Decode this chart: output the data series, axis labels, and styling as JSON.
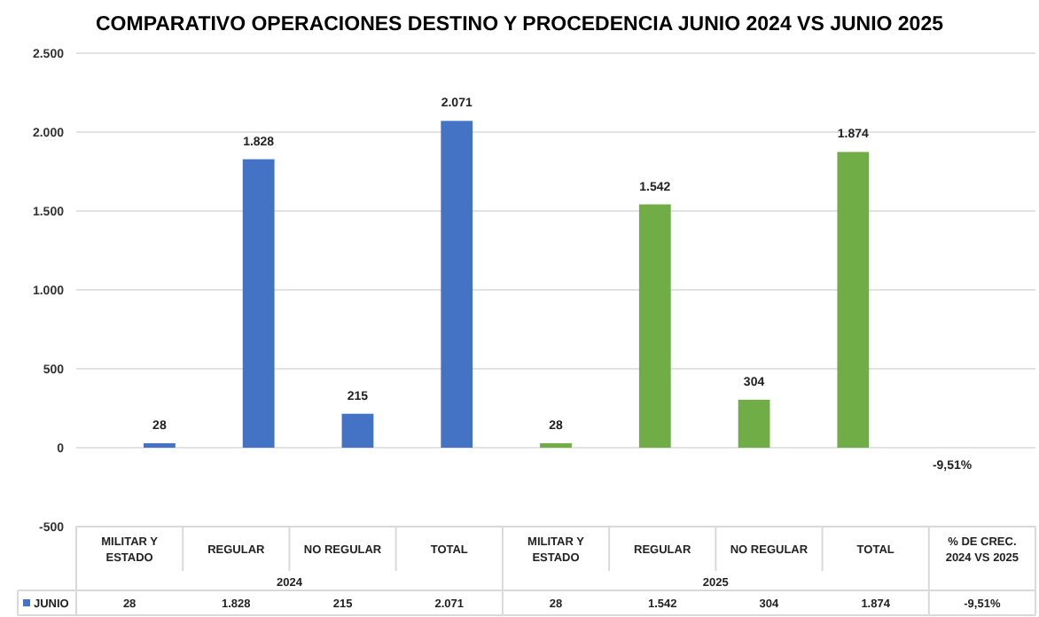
{
  "chart_data": {
    "type": "bar",
    "title": "COMPARATIVO OPERACIONES DESTINO Y PROCEDENCIA JUNIO 2024 VS JUNIO 2025",
    "categories": [
      "MILITAR Y ESTADO",
      "REGULAR",
      "NO REGULAR",
      "TOTAL",
      "MILITAR Y ESTADO",
      "REGULAR",
      "NO REGULAR",
      "TOTAL",
      "% DE CREC. 2024 VS 2025"
    ],
    "series": [
      {
        "name": "JUNIO",
        "color": "#4472c4",
        "colors": [
          "#4472c4",
          "#4472c4",
          "#4472c4",
          "#4472c4",
          "#70ad47",
          "#70ad47",
          "#70ad47",
          "#70ad47",
          "#70ad47"
        ],
        "values": [
          28,
          1828,
          215,
          2071,
          28,
          1542,
          304,
          1874,
          -0.0951
        ],
        "value_labels": [
          "28",
          "1.828",
          "215",
          "2.071",
          "28",
          "1.542",
          "304",
          "1.874",
          "-9,51%"
        ]
      }
    ],
    "annotations": [
      "2024",
      "2025"
    ],
    "ylim": [
      -500,
      2500
    ],
    "yticks": [
      {
        "value": -500,
        "label": "-500"
      },
      0,
      500,
      {
        "value": 1000,
        "label": "1.000"
      },
      {
        "value": 1500,
        "label": "1.500"
      },
      {
        "value": 2000,
        "label": "2.000"
      },
      {
        "value": 2500,
        "label": "2.500"
      }
    ],
    "grid": "y",
    "legend": "bottom"
  }
}
